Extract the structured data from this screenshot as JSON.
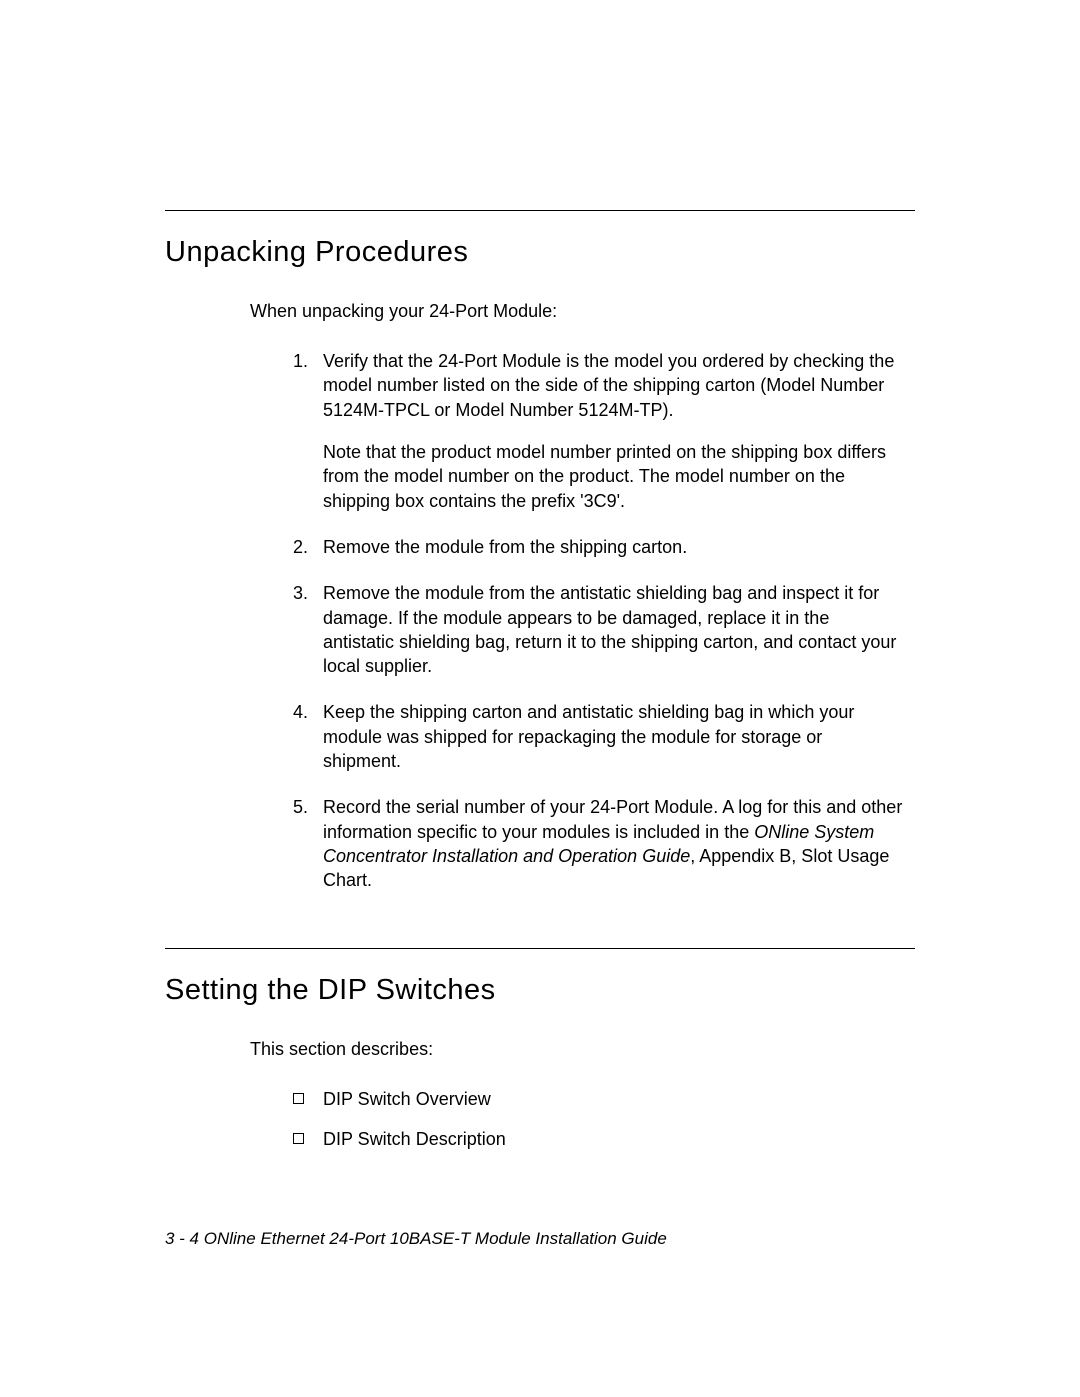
{
  "section1": {
    "heading": "Unpacking Procedures",
    "intro": "When unpacking your 24-Port Module:",
    "items": [
      {
        "num": "1.",
        "text": "Verify that the 24-Port Module is the model you ordered by checking the model number listed on the side of the shipping carton (Model Number 5124M-TPCL or Model Number 5124M-TP).",
        "note": "Note that the product model number printed on the shipping box differs from the model number on the product.  The model number on the shipping box contains the prefix '3C9'."
      },
      {
        "num": "2.",
        "text": "Remove the module from the shipping carton."
      },
      {
        "num": "3.",
        "text": "Remove the module from the antistatic shielding bag and inspect it for damage.  If the module appears to be damaged, replace it in the antistatic shielding bag, return it to the shipping carton, and contact your local supplier."
      },
      {
        "num": "4.",
        "text": "Keep the shipping carton and antistatic shielding bag in which your module was shipped for repackaging the module for storage or shipment."
      },
      {
        "num": "5.",
        "text_before": "Record the serial number of your 24-Port Module.  A log for this and other information specific to your modules is included in the ",
        "text_italic": "ONline System Concentrator Installation and Operation Guide",
        "text_after": ", Appendix B, Slot Usage Chart."
      }
    ]
  },
  "section2": {
    "heading": "Setting the DIP Switches",
    "intro": "This section describes:",
    "bullets": [
      "DIP Switch Overview",
      "DIP Switch Description"
    ]
  },
  "footer": {
    "page": "3 - 4",
    "title": "  ONline Ethernet 24-Port 10BASE-T Module Installation Guide"
  }
}
